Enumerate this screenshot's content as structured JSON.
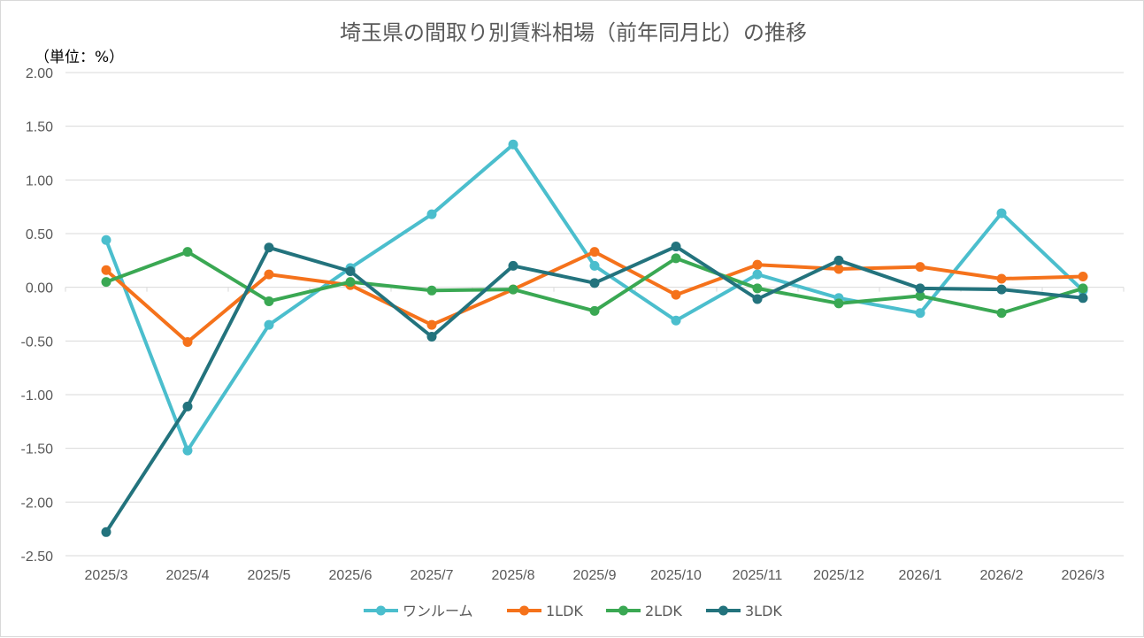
{
  "chart_data": {
    "type": "line",
    "title": "埼玉県の間取り別賃料相場（前年同月比）の推移",
    "unit_label": "（単位：%）",
    "xlabel": "",
    "ylabel": "",
    "ylim": [
      -2.5,
      2.0
    ],
    "y_ticks": [
      2.0,
      1.5,
      1.0,
      0.5,
      0.0,
      -0.5,
      -1.0,
      -1.5,
      -2.0,
      -2.5
    ],
    "y_tick_labels": [
      "2.00",
      "1.50",
      "1.00",
      "0.50",
      "0.00",
      "-0.50",
      "-1.00",
      "-1.50",
      "-2.00",
      "-2.50"
    ],
    "categories": [
      "2025/3",
      "2025/4",
      "2025/5",
      "2025/6",
      "2025/7",
      "2025/8",
      "2025/9",
      "2025/10",
      "2025/11",
      "2025/12",
      "2026/1",
      "2026/2",
      "2026/3"
    ],
    "grid": true,
    "legend_position": "bottom",
    "series": [
      {
        "name": "ワンルーム",
        "color": "#4bbecd",
        "values": [
          0.44,
          -1.52,
          -0.35,
          0.18,
          0.68,
          1.33,
          0.2,
          -0.31,
          0.12,
          -0.1,
          -0.24,
          0.69,
          -0.03
        ]
      },
      {
        "name": "1LDK",
        "color": "#f5721b",
        "values": [
          0.16,
          -0.51,
          0.12,
          0.02,
          -0.35,
          -0.02,
          0.33,
          -0.07,
          0.21,
          0.17,
          0.19,
          0.08,
          0.1
        ]
      },
      {
        "name": "2LDK",
        "color": "#3aa853",
        "values": [
          0.05,
          0.33,
          -0.13,
          0.05,
          -0.03,
          -0.02,
          -0.22,
          0.27,
          -0.01,
          -0.15,
          -0.08,
          -0.24,
          -0.01
        ]
      },
      {
        "name": "3LDK",
        "color": "#23737d",
        "values": [
          -2.28,
          -1.11,
          0.37,
          0.15,
          -0.46,
          0.2,
          0.04,
          0.38,
          -0.11,
          0.25,
          -0.01,
          -0.02,
          -0.1
        ]
      }
    ]
  }
}
